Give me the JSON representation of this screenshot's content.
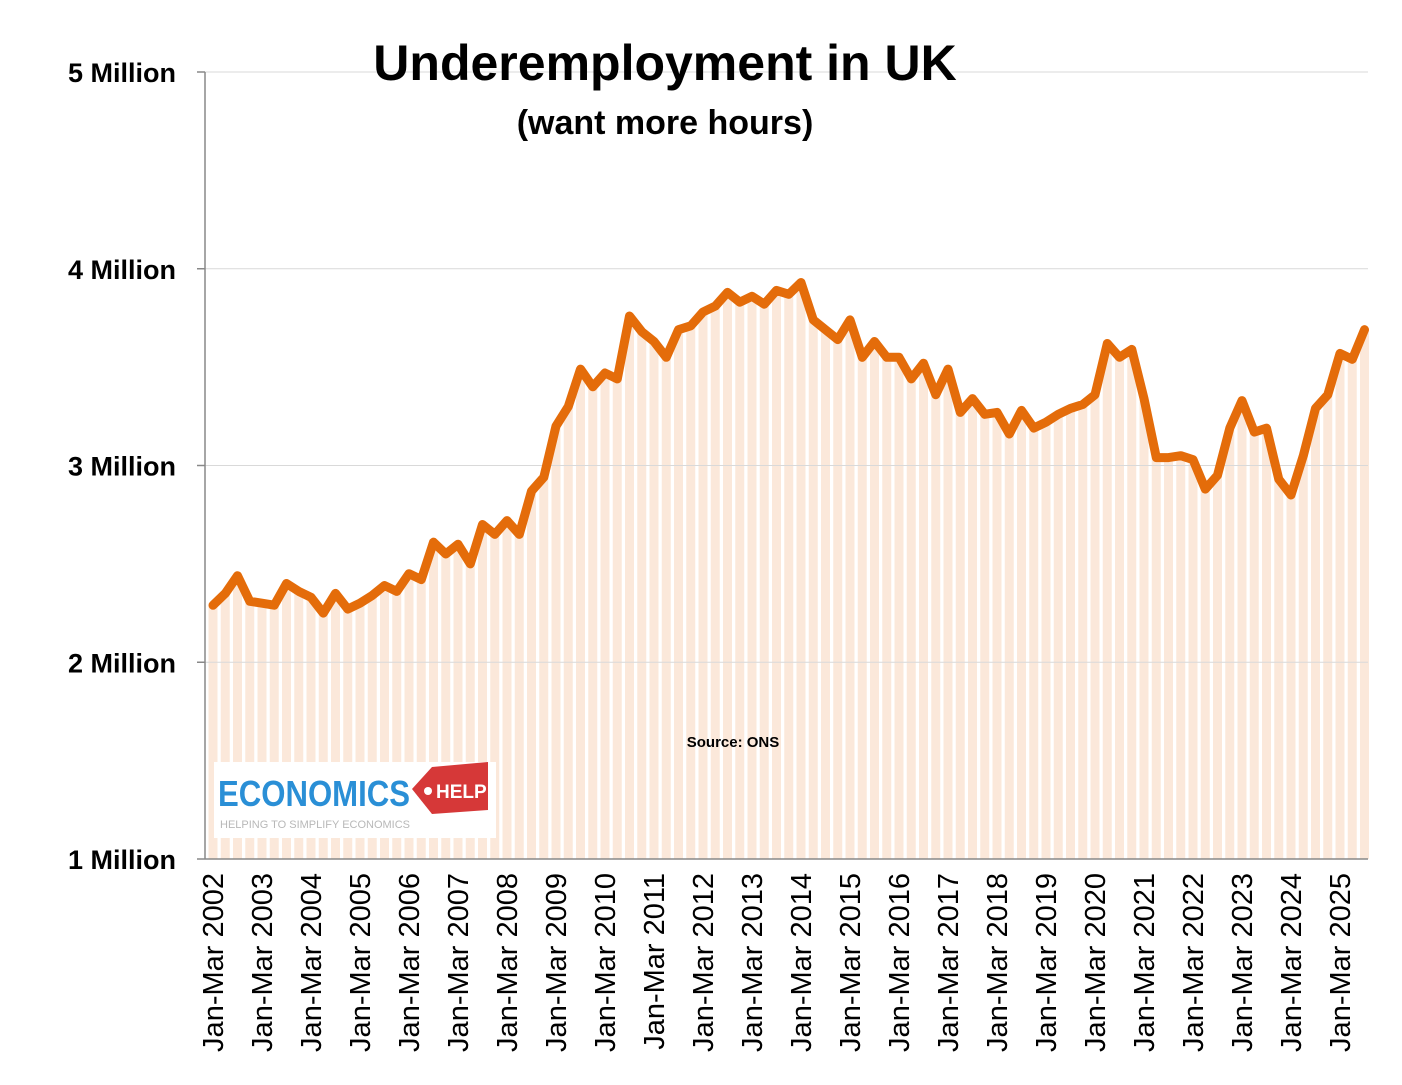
{
  "chart_data": {
    "type": "line",
    "title": "Underemployment in UK",
    "subtitle": "(want more hours)",
    "annotation": "Source: ONS",
    "ylabel": "",
    "xlabel": "",
    "ylim": [
      1,
      5
    ],
    "y_unit": "Million",
    "y_ticks": [
      {
        "value": 1,
        "label": "1 Million"
      },
      {
        "value": 2,
        "label": "2 Million"
      },
      {
        "value": 3,
        "label": "3 Million"
      },
      {
        "value": 4,
        "label": "4 Million"
      },
      {
        "value": 5,
        "label": "5 Million"
      }
    ],
    "grid": true,
    "x_tick_labels": [
      "Jan-Mar 2002",
      "Jan-Mar 2003",
      "Jan-Mar 2004",
      "Jan-Mar 2005",
      "Jan-Mar 2006",
      "Jan-Mar 2007",
      "Jan-Mar 2008",
      "Jan-Mar 2009",
      "Jan-Mar 2010",
      "Jan-Mar 2011",
      "Jan-Mar 2012",
      "Jan-Mar 2013",
      "Jan-Mar 2014",
      "Jan-Mar 2015",
      "Jan-Mar 2016",
      "Jan-Mar 2017",
      "Jan-Mar 2018",
      "Jan-Mar 2019",
      "Jan-Mar 2020",
      "Jan-Mar 2021",
      "Jan-Mar 2022",
      "Jan-Mar 2023",
      "Jan-Mar 2024",
      "Jan-Mar 2025"
    ],
    "x_start": "Jan-Mar 2002",
    "x_frequency": "quarterly",
    "series": [
      {
        "color": "#e46c0a",
        "area_color": "#fbe8da",
        "values": [
          2.29,
          2.35,
          2.44,
          2.31,
          2.3,
          2.29,
          2.4,
          2.36,
          2.33,
          2.25,
          2.35,
          2.27,
          2.3,
          2.34,
          2.39,
          2.36,
          2.45,
          2.42,
          2.61,
          2.55,
          2.6,
          2.5,
          2.7,
          2.65,
          2.72,
          2.65,
          2.87,
          2.94,
          3.2,
          3.3,
          3.49,
          3.4,
          3.47,
          3.44,
          3.76,
          3.68,
          3.63,
          3.55,
          3.69,
          3.71,
          3.78,
          3.81,
          3.88,
          3.83,
          3.86,
          3.82,
          3.89,
          3.87,
          3.93,
          3.74,
          3.69,
          3.64,
          3.74,
          3.55,
          3.63,
          3.55,
          3.55,
          3.44,
          3.52,
          3.36,
          3.49,
          3.27,
          3.34,
          3.26,
          3.27,
          3.16,
          3.28,
          3.19,
          3.22,
          3.26,
          3.29,
          3.31,
          3.36,
          3.62,
          3.55,
          3.59,
          3.34,
          3.04,
          3.04,
          3.05,
          3.03,
          2.88,
          2.95,
          3.19,
          3.33,
          3.17,
          3.19,
          2.93,
          2.85,
          3.05,
          3.29,
          3.36,
          3.57,
          3.54,
          3.69
        ]
      }
    ]
  },
  "logo": {
    "name": "ECONOMICS",
    "tag": "HELP",
    "tagline": "HELPING TO SIMPLIFY ECONOMICS"
  }
}
